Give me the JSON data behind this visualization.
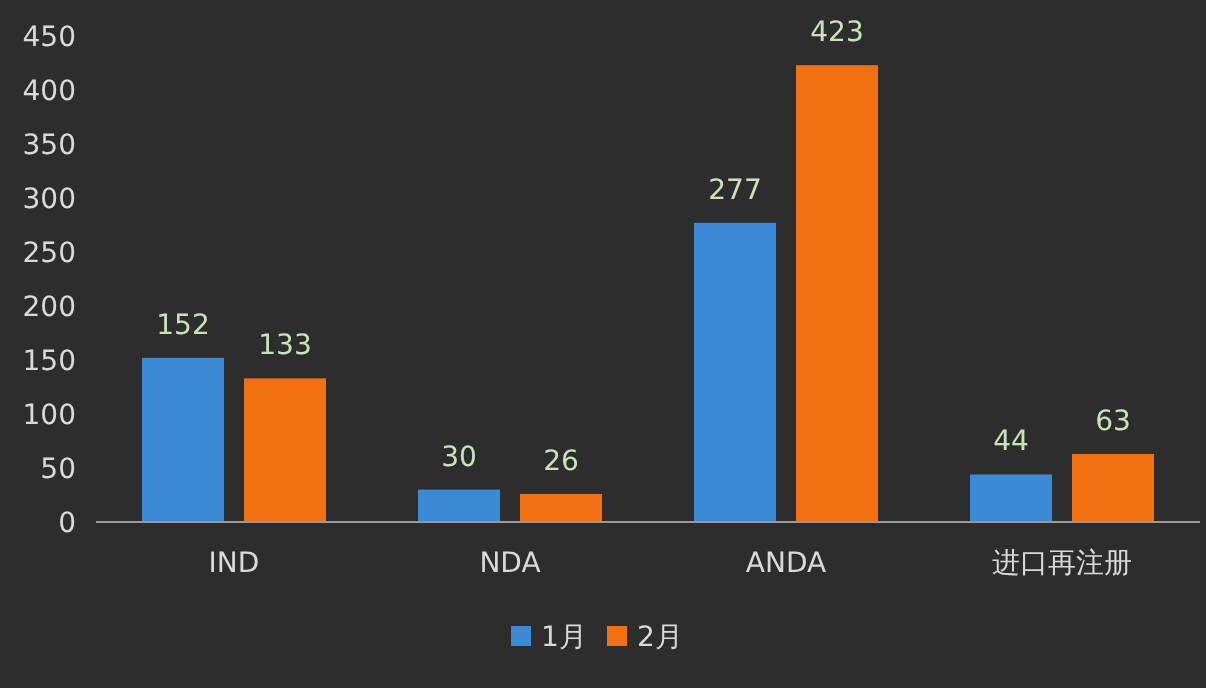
{
  "chart_data": {
    "type": "bar",
    "categories": [
      "IND",
      "NDA",
      "ANDA",
      "进口再注册"
    ],
    "series": [
      {
        "name": "1月",
        "color": "#3a8ad6",
        "values": [
          152,
          30,
          277,
          44
        ]
      },
      {
        "name": "2月",
        "color": "#f07012",
        "values": [
          133,
          26,
          423,
          63
        ]
      }
    ],
    "ylim": [
      0,
      450
    ],
    "yticks": [
      0,
      50,
      100,
      150,
      200,
      250,
      300,
      350,
      400,
      450
    ],
    "data_labels": true,
    "legend": "bottom",
    "grid": false
  }
}
